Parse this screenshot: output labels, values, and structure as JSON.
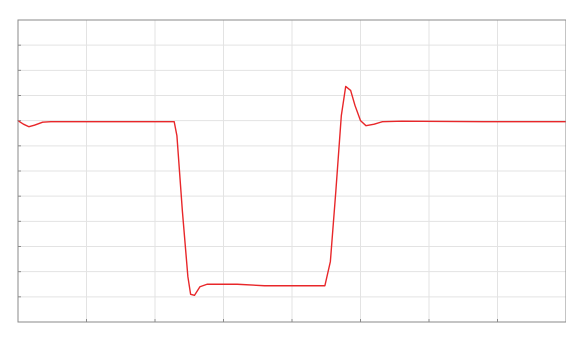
{
  "chart_data": {
    "type": "line",
    "title": "",
    "xlabel": "",
    "ylabel": "",
    "xlim": [
      0,
      1
    ],
    "ylim": [
      -0.4,
      0.2
    ],
    "x_tick_count": 8,
    "y_tick_count": 12,
    "grid": true,
    "legend": "none",
    "series": [
      {
        "color": "#e8272a",
        "points": [
          [
            0.0,
            0.0
          ],
          [
            0.01,
            -0.007
          ],
          [
            0.02,
            -0.012
          ],
          [
            0.03,
            -0.009
          ],
          [
            0.045,
            -0.003
          ],
          [
            0.06,
            -0.002
          ],
          [
            0.15,
            -0.002
          ],
          [
            0.2,
            -0.002
          ],
          [
            0.25,
            -0.002
          ],
          [
            0.285,
            -0.002
          ],
          [
            0.29,
            -0.03
          ],
          [
            0.3,
            -0.18
          ],
          [
            0.31,
            -0.31
          ],
          [
            0.315,
            -0.345
          ],
          [
            0.322,
            -0.347
          ],
          [
            0.332,
            -0.33
          ],
          [
            0.345,
            -0.325
          ],
          [
            0.4,
            -0.325
          ],
          [
            0.45,
            -0.328
          ],
          [
            0.5,
            -0.328
          ],
          [
            0.56,
            -0.328
          ],
          [
            0.57,
            -0.28
          ],
          [
            0.58,
            -0.14
          ],
          [
            0.59,
            0.01
          ],
          [
            0.598,
            0.068
          ],
          [
            0.607,
            0.06
          ],
          [
            0.615,
            0.03
          ],
          [
            0.625,
            0.0
          ],
          [
            0.635,
            -0.01
          ],
          [
            0.65,
            -0.007
          ],
          [
            0.665,
            -0.002
          ],
          [
            0.7,
            -0.001
          ],
          [
            0.85,
            -0.002
          ],
          [
            1.0,
            -0.002
          ]
        ]
      }
    ]
  },
  "window": {
    "bottom_label": ""
  }
}
